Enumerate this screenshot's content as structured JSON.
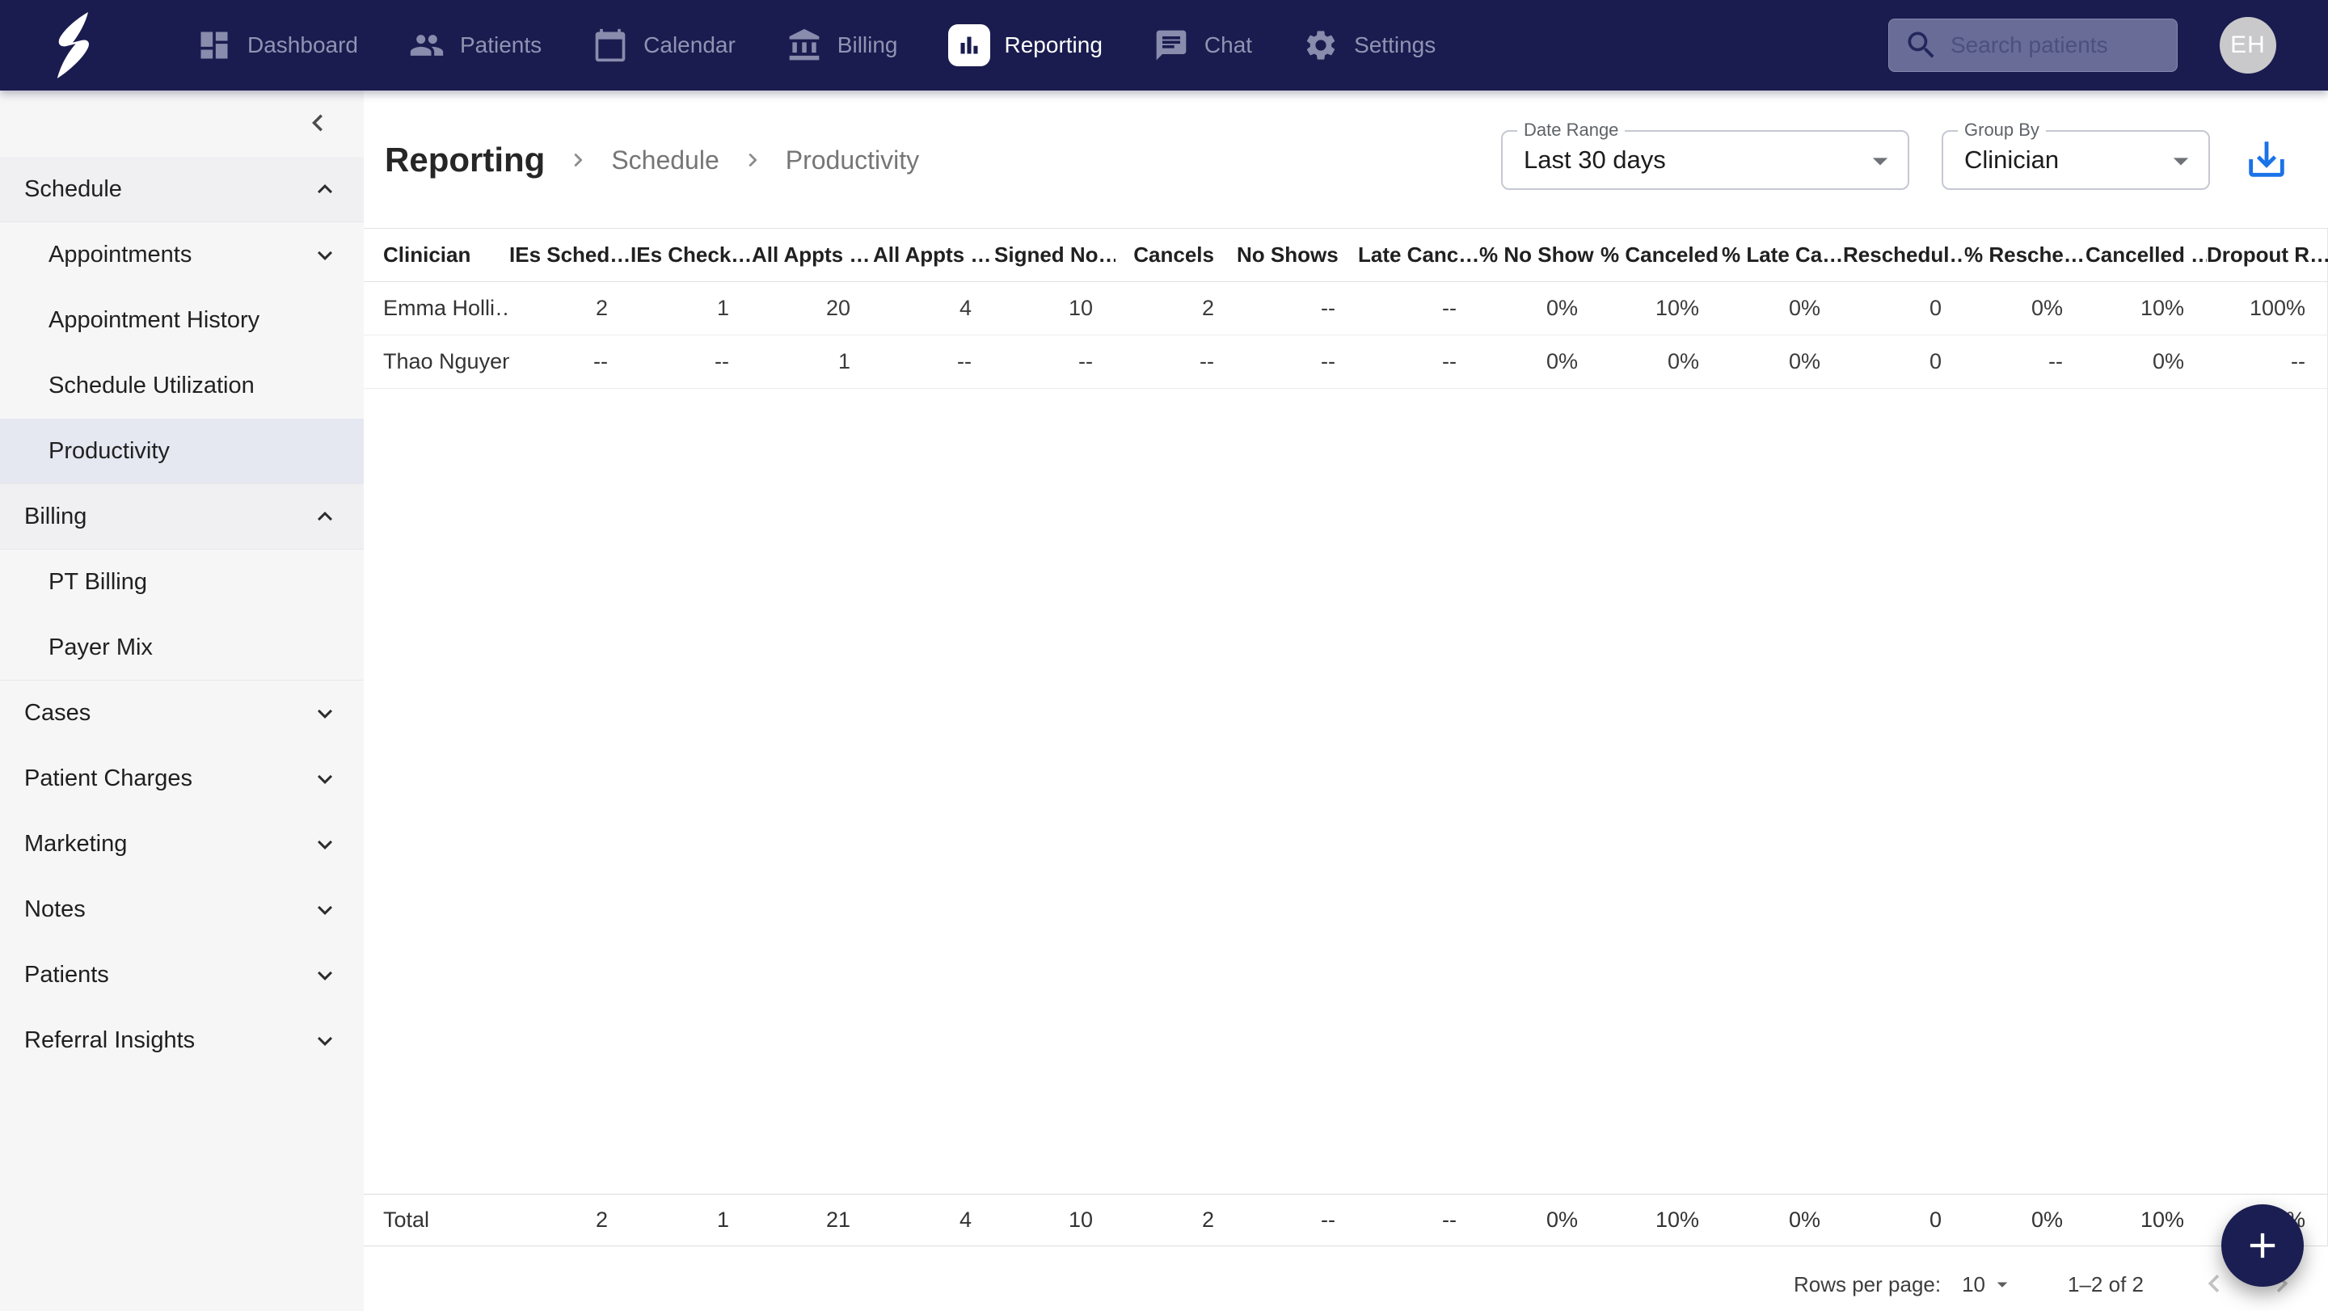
{
  "colors": {
    "brand_navy": "#1a1c4f",
    "download_blue": "#1a73e8",
    "selected_item_bg": "#e5e8f1"
  },
  "topnav": {
    "items": [
      {
        "label": "Dashboard",
        "icon": "dashboard-icon",
        "active": false
      },
      {
        "label": "Patients",
        "icon": "patients-icon",
        "active": false
      },
      {
        "label": "Calendar",
        "icon": "calendar-icon",
        "active": false
      },
      {
        "label": "Billing",
        "icon": "billing-icon",
        "active": false
      },
      {
        "label": "Reporting",
        "icon": "reporting-icon",
        "active": true
      },
      {
        "label": "Chat",
        "icon": "chat-icon",
        "active": false
      },
      {
        "label": "Settings",
        "icon": "settings-icon",
        "active": false
      }
    ],
    "search": {
      "placeholder": "Search patients"
    },
    "avatar": "EH"
  },
  "sidebar": {
    "items": [
      {
        "label": "Schedule",
        "level": 0,
        "chevron": "up",
        "expanded_header": true
      },
      {
        "label": "Appointments",
        "level": 1,
        "chevron": "down"
      },
      {
        "label": "Appointment History",
        "level": 1
      },
      {
        "label": "Schedule Utilization",
        "level": 1
      },
      {
        "label": "Productivity",
        "level": 1,
        "selected": true,
        "group_end": true
      },
      {
        "label": "Billing",
        "level": 0,
        "chevron": "up",
        "expanded_header": true
      },
      {
        "label": "PT Billing",
        "level": 1
      },
      {
        "label": "Payer Mix",
        "level": 1,
        "group_end": true
      },
      {
        "label": "Cases",
        "level": 0,
        "chevron": "down"
      },
      {
        "label": "Patient Charges",
        "level": 0,
        "chevron": "down"
      },
      {
        "label": "Marketing",
        "level": 0,
        "chevron": "down"
      },
      {
        "label": "Notes",
        "level": 0,
        "chevron": "down"
      },
      {
        "label": "Patients",
        "level": 0,
        "chevron": "down"
      },
      {
        "label": "Referral Insights",
        "level": 0,
        "chevron": "down"
      }
    ]
  },
  "header": {
    "breadcrumb": [
      "Reporting",
      "Schedule",
      "Productivity"
    ],
    "date_range": {
      "label": "Date Range",
      "value": "Last 30 days"
    },
    "group_by": {
      "label": "Group By",
      "value": "Clinician"
    }
  },
  "table": {
    "columns": [
      "Clinician",
      "IEs Sched…",
      "IEs Check…",
      "All Appts …",
      "All Appts …",
      "Signed No…",
      "Cancels",
      "No Shows",
      "Late Canc…",
      "% No Show",
      "% Canceled",
      "% Late Ca…",
      "Reschedul…",
      "% Resche…",
      "Cancelled …",
      "Dropout R…"
    ],
    "rows": [
      {
        "clinician": "Emma Holli…",
        "values": [
          "2",
          "1",
          "20",
          "4",
          "10",
          "2",
          "--",
          "--",
          "0%",
          "10%",
          "0%",
          "0",
          "0%",
          "10%",
          "100%"
        ]
      },
      {
        "clinician": "Thao Nguyen",
        "values": [
          "--",
          "--",
          "1",
          "--",
          "--",
          "--",
          "--",
          "--",
          "0%",
          "0%",
          "0%",
          "0",
          "--",
          "0%",
          "--"
        ]
      }
    ],
    "total": {
      "label": "Total",
      "values": [
        "2",
        "1",
        "21",
        "4",
        "10",
        "2",
        "--",
        "--",
        "0%",
        "10%",
        "0%",
        "0",
        "0%",
        "10%",
        "100%"
      ]
    }
  },
  "pagination": {
    "rows_per_page_label": "Rows per page:",
    "rows_per_page": "10",
    "range": "1–2 of 2"
  }
}
